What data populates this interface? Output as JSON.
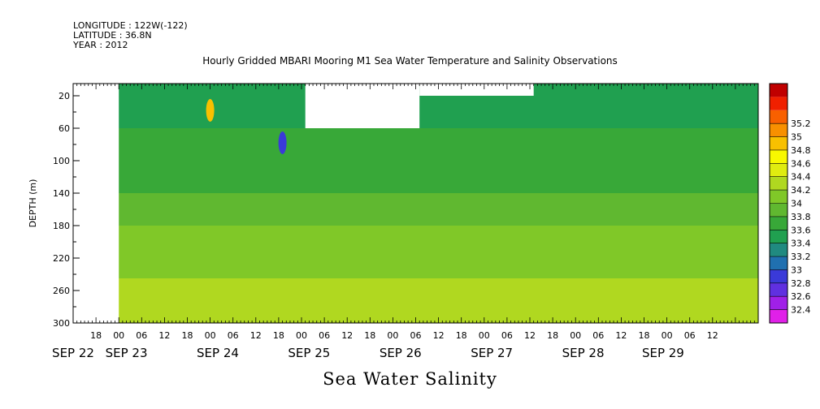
{
  "header": {
    "longitude": "LONGITUDE : 122W(-122)",
    "latitude": "LATITUDE : 36.8N",
    "year": "YEAR : 2012"
  },
  "chart_data": {
    "type": "heatmap",
    "title": "Hourly Gridded MBARI Mooring M1 Sea Water Temperature and Salinity Observations",
    "footer_label": "Sea Water Salinity",
    "ylabel": "DEPTH (m)",
    "ylim": [
      300,
      5
    ],
    "y_ticks": [
      20,
      60,
      100,
      140,
      180,
      220,
      260,
      300
    ],
    "x_start": "SEP 22 12:00",
    "x_end": "SEP 30 00:00",
    "x_hour_ticks": [
      {
        "t": 6,
        "label": "18"
      },
      {
        "t": 12,
        "label": "00"
      },
      {
        "t": 18,
        "label": "06"
      },
      {
        "t": 24,
        "label": "12"
      },
      {
        "t": 30,
        "label": "18"
      },
      {
        "t": 36,
        "label": "00"
      },
      {
        "t": 42,
        "label": "06"
      },
      {
        "t": 48,
        "label": "12"
      },
      {
        "t": 54,
        "label": "18"
      },
      {
        "t": 60,
        "label": "00"
      },
      {
        "t": 66,
        "label": "06"
      },
      {
        "t": 72,
        "label": "12"
      },
      {
        "t": 78,
        "label": "18"
      },
      {
        "t": 84,
        "label": "00"
      },
      {
        "t": 90,
        "label": "06"
      },
      {
        "t": 96,
        "label": "12"
      },
      {
        "t": 102,
        "label": "18"
      },
      {
        "t": 108,
        "label": "00"
      },
      {
        "t": 114,
        "label": "06"
      },
      {
        "t": 120,
        "label": "12"
      },
      {
        "t": 126,
        "label": "18"
      },
      {
        "t": 132,
        "label": "00"
      },
      {
        "t": 138,
        "label": "06"
      },
      {
        "t": 144,
        "label": "12"
      },
      {
        "t": 150,
        "label": "18"
      },
      {
        "t": 156,
        "label": "00"
      },
      {
        "t": 162,
        "label": "06"
      },
      {
        "t": 168,
        "label": "12"
      }
    ],
    "x_day_labels": [
      {
        "t": 0,
        "label": "SEP 22"
      },
      {
        "t": 14,
        "label": "SEP 23"
      },
      {
        "t": 38,
        "label": "SEP 24"
      },
      {
        "t": 62,
        "label": "SEP 25"
      },
      {
        "t": 86,
        "label": "SEP 26"
      },
      {
        "t": 110,
        "label": "SEP 27"
      },
      {
        "t": 134,
        "label": "SEP 28"
      },
      {
        "t": 155,
        "label": "SEP 29"
      }
    ],
    "colorbar": {
      "levels": [
        "32.4",
        "32.6",
        "32.8",
        "33",
        "33.2",
        "33.4",
        "33.6",
        "33.8",
        "34",
        "34.2",
        "34.4",
        "34.6",
        "34.8",
        "35",
        "35.2"
      ],
      "colors": [
        "#e020e8",
        "#a020e8",
        "#6030e0",
        "#3a3ad8",
        "#2070b0",
        "#208a80",
        "#20a050",
        "#38a838",
        "#60b830",
        "#80c828",
        "#b0d820",
        "#e0ec10",
        "#f8f800",
        "#f8c000",
        "#f89000",
        "#f86000",
        "#f02000",
        "#c00000"
      ]
    },
    "data_start_t": 12,
    "gaps": [
      {
        "t0": 61,
        "t1": 91,
        "depth_top": 5,
        "depth_bottom": 60
      },
      {
        "t0": 91,
        "t1": 121,
        "depth_top": 5,
        "depth_bottom": 20
      }
    ],
    "depth_profile": [
      {
        "depth": 5,
        "value": 33.35
      },
      {
        "depth": 20,
        "value": 33.55
      },
      {
        "depth": 60,
        "value": 33.62
      },
      {
        "depth": 100,
        "value": 33.72
      },
      {
        "depth": 140,
        "value": 33.85
      },
      {
        "depth": 180,
        "value": 33.95
      },
      {
        "depth": 220,
        "value": 34.05
      },
      {
        "depth": 245,
        "value": 34.15
      },
      {
        "depth": 300,
        "value": 34.3
      }
    ],
    "features": [
      {
        "t": 36,
        "depth": 38,
        "value": 34.9
      },
      {
        "t": 55,
        "depth": 78,
        "value": 32.8
      }
    ]
  }
}
